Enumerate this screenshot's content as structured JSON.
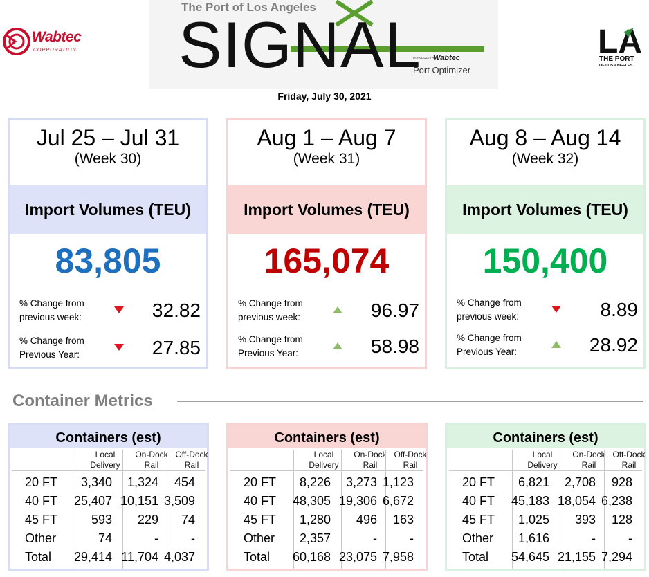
{
  "header": {
    "left_logo": {
      "name": "Wabtec",
      "subtitle": "CORPORATION",
      "color": "#c8102e"
    },
    "signal": {
      "top_text": "The Port of Los Angeles",
      "title": "SIGNAL",
      "powered_by": "POWERED BY",
      "powered_brand": "Wabtec",
      "product": "Port Optimizer",
      "accent_color": "#5a9e2f"
    },
    "right_logo": {
      "mark": "LA",
      "line1": "THE PORT",
      "line2": "OF LOS ANGELES"
    },
    "date": "Friday, July 30, 2021"
  },
  "weeks": [
    {
      "range": "Jul 25 – Jul 31",
      "week": "(Week 30)",
      "metric_label": "Import Volumes (TEU)",
      "value": "83,805",
      "changes": [
        {
          "label_line1": "% Change from",
          "label_line2": "previous week:",
          "direction": "down",
          "value": "32.82"
        },
        {
          "label_line1": "% Change from",
          "label_line2": "Previous Year:",
          "direction": "down",
          "value": "27.85"
        }
      ]
    },
    {
      "range": "Aug 1 – Aug 7",
      "week": "(Week 31)",
      "metric_label": "Import Volumes (TEU)",
      "value": "165,074",
      "changes": [
        {
          "label_line1": "% Change from",
          "label_line2": "previous week:",
          "direction": "up",
          "value": "96.97"
        },
        {
          "label_line1": "% Change from",
          "label_line2": "Previous Year:",
          "direction": "up",
          "value": "58.98"
        }
      ]
    },
    {
      "range": "Aug 8 – Aug 14",
      "week": "(Week 32)",
      "metric_label": "Import Volumes (TEU)",
      "value": "150,400",
      "changes": [
        {
          "label_line1": "% Change from",
          "label_line2": "previous week:",
          "direction": "down",
          "value": "8.89"
        },
        {
          "label_line1": "% Change from",
          "label_line2": "Previous Year:",
          "direction": "up",
          "value": "28.92"
        }
      ]
    }
  ],
  "colors": {
    "down_arrow": "#e0141e",
    "up_arrow": "#8fbc6a"
  },
  "metrics": {
    "title": "Container Metrics",
    "tables": [
      {
        "title": "Containers (est)",
        "headers": [
          [
            "Local",
            "Delivery"
          ],
          [
            "On-Dock",
            "Rail"
          ],
          [
            "Off-Dock",
            "Rail"
          ]
        ],
        "rows": [
          {
            "label": "20 FT",
            "values": [
              "3,340",
              "1,324",
              "454"
            ]
          },
          {
            "label": "40 FT",
            "values": [
              "25,407",
              "10,151",
              "3,509"
            ]
          },
          {
            "label": "45 FT",
            "values": [
              "593",
              "229",
              "74"
            ]
          },
          {
            "label": "Other",
            "values": [
              "74",
              "-",
              "-"
            ]
          },
          {
            "label": "Total",
            "values": [
              "29,414",
              "11,704",
              "4,037"
            ]
          }
        ]
      },
      {
        "title": "Containers (est)",
        "headers": [
          [
            "Local",
            "Delivery"
          ],
          [
            "On-Dock",
            "Rail"
          ],
          [
            "Off-Dock",
            "Rail"
          ]
        ],
        "rows": [
          {
            "label": "20 FT",
            "values": [
              "8,226",
              "3,273",
              "1,123"
            ]
          },
          {
            "label": "40 FT",
            "values": [
              "48,305",
              "19,306",
              "6,672"
            ]
          },
          {
            "label": "45 FT",
            "values": [
              "1,280",
              "496",
              "163"
            ]
          },
          {
            "label": "Other",
            "values": [
              "2,357",
              "-",
              "-"
            ]
          },
          {
            "label": "Total",
            "values": [
              "60,168",
              "23,075",
              "7,958"
            ]
          }
        ]
      },
      {
        "title": "Containers (est)",
        "headers": [
          [
            "Local",
            "Delivery"
          ],
          [
            "On-Dock",
            "Rail"
          ],
          [
            "Off-Dock",
            "Rail"
          ]
        ],
        "rows": [
          {
            "label": "20 FT",
            "values": [
              "6,821",
              "2,708",
              "928"
            ]
          },
          {
            "label": "40 FT",
            "values": [
              "45,183",
              "18,054",
              "6,238"
            ]
          },
          {
            "label": "45 FT",
            "values": [
              "1,025",
              "393",
              "128"
            ]
          },
          {
            "label": "Other",
            "values": [
              "1,616",
              "-",
              "-"
            ]
          },
          {
            "label": "Total",
            "values": [
              "54,645",
              "21,155",
              "7,294"
            ]
          }
        ]
      }
    ]
  }
}
